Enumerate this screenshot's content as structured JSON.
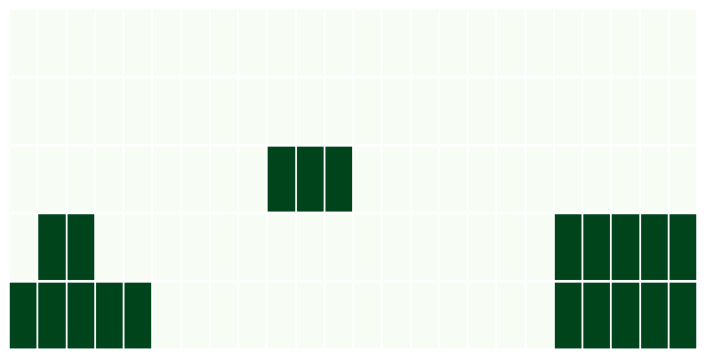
{
  "board": {
    "rows": 5,
    "cols": 24,
    "colors": {
      "off": "#f7fcf5",
      "on": "#00441b"
    },
    "cells": [
      [
        0,
        0,
        0,
        0,
        0,
        0,
        0,
        0,
        0,
        0,
        0,
        0,
        0,
        0,
        0,
        0,
        0,
        0,
        0,
        0,
        0,
        0,
        0,
        0
      ],
      [
        0,
        0,
        0,
        0,
        0,
        0,
        0,
        0,
        0,
        0,
        0,
        0,
        0,
        0,
        0,
        0,
        0,
        0,
        0,
        0,
        0,
        0,
        0,
        0
      ],
      [
        0,
        0,
        0,
        0,
        0,
        0,
        0,
        0,
        0,
        1,
        1,
        1,
        0,
        0,
        0,
        0,
        0,
        0,
        0,
        0,
        0,
        0,
        0,
        0
      ],
      [
        0,
        1,
        1,
        0,
        0,
        0,
        0,
        0,
        0,
        0,
        0,
        0,
        0,
        0,
        0,
        0,
        0,
        0,
        0,
        1,
        1,
        1,
        1,
        1
      ],
      [
        1,
        1,
        1,
        1,
        1,
        0,
        0,
        0,
        0,
        0,
        0,
        0,
        0,
        0,
        0,
        0,
        0,
        0,
        0,
        1,
        1,
        1,
        1,
        1
      ]
    ]
  }
}
